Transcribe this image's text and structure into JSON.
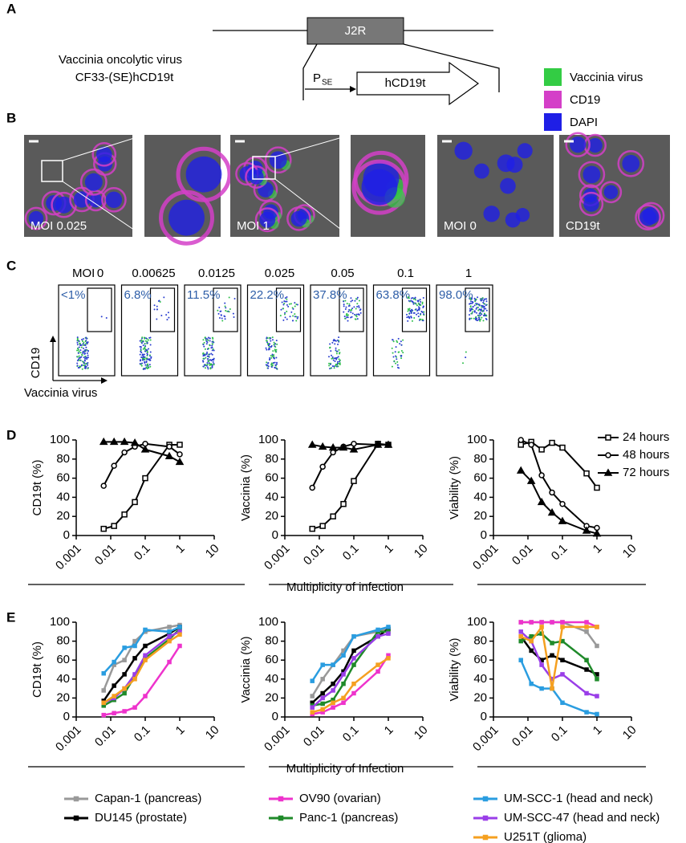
{
  "panel_a": {
    "label": "A",
    "virus_line1": "Vaccinia oncolytic virus",
    "virus_line2": "CF33-(SE)hCD19t",
    "gene_box": "J2R",
    "promoter": "P",
    "promoter_sub": "SE",
    "insert": "hCD19t"
  },
  "panel_b": {
    "label": "B",
    "legend": [
      {
        "name": "Vaccinia virus",
        "color": "#33cc44"
      },
      {
        "name": "CD19",
        "color": "#d43fc8"
      },
      {
        "name": "DAPI",
        "color": "#1f1fe6"
      }
    ],
    "image_labels": [
      "MOI 0.025",
      "MOI 1",
      "MOI 0",
      "CD19t"
    ]
  },
  "panel_c": {
    "label": "C",
    "moi_label": "MOI",
    "moi": [
      "0",
      "0.00625",
      "0.0125",
      "0.025",
      "0.05",
      "0.1",
      "1"
    ],
    "gate_percent": [
      "<1%",
      "6.8%",
      "11.5%",
      "22.2%",
      "37.8%",
      "63.8%",
      "98.0%"
    ],
    "y_axis": "CD19",
    "x_axis": "Vaccinia virus"
  },
  "panel_d": {
    "label": "D",
    "xlabel": "Multiplicity of infection"
  },
  "panel_e": {
    "label": "E",
    "xlabel": "Multiplicity of Infection"
  },
  "chart_data": [
    {
      "type": "line",
      "ylabel": "CD19t (%)",
      "x": [
        0.00625,
        0.0125,
        0.025,
        0.05,
        0.1,
        0.5,
        1
      ],
      "xscale": "log",
      "xlim": [
        0.001,
        10
      ],
      "xticks": [
        0.001,
        0.01,
        0.1,
        1,
        10
      ],
      "ylim": [
        0,
        100
      ],
      "yticks": [
        0,
        20,
        40,
        60,
        80,
        100
      ],
      "series": [
        {
          "color": "#000000",
          "marker": "square",
          "filled": false,
          "values": [
            7,
            10,
            22,
            35,
            60,
            95,
            95
          ]
        },
        {
          "color": "#000000",
          "marker": "circle",
          "filled": false,
          "values": [
            52,
            73,
            87,
            93,
            96,
            93,
            85
          ]
        },
        {
          "color": "#000000",
          "marker": "triangle",
          "filled": true,
          "values": [
            98,
            98,
            98,
            97,
            90,
            83,
            77
          ]
        }
      ]
    },
    {
      "type": "line",
      "ylabel": "Vaccinia (%)",
      "x": [
        0.00625,
        0.0125,
        0.025,
        0.05,
        0.1,
        0.5,
        1
      ],
      "xscale": "log",
      "xlim": [
        0.001,
        10
      ],
      "xticks": [
        0.001,
        0.01,
        0.1,
        1,
        10
      ],
      "ylim": [
        0,
        100
      ],
      "yticks": [
        0,
        20,
        40,
        60,
        80,
        100
      ],
      "series": [
        {
          "color": "#000000",
          "marker": "square",
          "filled": false,
          "values": [
            7,
            10,
            20,
            33,
            57,
            96,
            95
          ]
        },
        {
          "color": "#000000",
          "marker": "circle",
          "filled": false,
          "values": [
            50,
            72,
            87,
            93,
            96,
            95,
            95
          ]
        },
        {
          "color": "#000000",
          "marker": "triangle",
          "filled": true,
          "values": [
            95,
            93,
            92,
            92,
            90,
            95,
            95
          ]
        }
      ]
    },
    {
      "type": "line",
      "ylabel": "Viability (%)",
      "x": [
        0.00625,
        0.0125,
        0.025,
        0.05,
        0.1,
        0.5,
        1
      ],
      "xscale": "log",
      "xlim": [
        0.001,
        10
      ],
      "xticks": [
        0.001,
        0.01,
        0.1,
        1,
        10
      ],
      "ylim": [
        0,
        100
      ],
      "yticks": [
        0,
        20,
        40,
        60,
        80,
        100
      ],
      "legend": "top-right",
      "series": [
        {
          "name": "24 hours",
          "color": "#000000",
          "marker": "square",
          "filled": false,
          "values": [
            95,
            98,
            90,
            97,
            92,
            65,
            50
          ]
        },
        {
          "name": "48 hours",
          "color": "#000000",
          "marker": "circle",
          "filled": false,
          "values": [
            100,
            95,
            63,
            45,
            33,
            10,
            8
          ]
        },
        {
          "name": "72 hours",
          "color": "#000000",
          "marker": "triangle",
          "filled": true,
          "values": [
            68,
            57,
            35,
            24,
            15,
            5,
            2
          ]
        }
      ]
    },
    {
      "type": "line",
      "ylabel": "CD19t (%)",
      "x": [
        0.00625,
        0.0125,
        0.025,
        0.05,
        0.1,
        0.5,
        1
      ],
      "xscale": "log",
      "xlim": [
        0.001,
        10
      ],
      "xticks": [
        0.001,
        0.01,
        0.1,
        1,
        10
      ],
      "ylim": [
        0,
        100
      ],
      "yticks": [
        0,
        20,
        40,
        60,
        80,
        100
      ],
      "series": [
        {
          "color": "#999999",
          "marker": "square",
          "filled": true,
          "values": [
            28,
            55,
            60,
            80,
            90,
            95,
            97
          ]
        },
        {
          "color": "#000000",
          "marker": "square",
          "filled": true,
          "values": [
            17,
            33,
            45,
            62,
            75,
            88,
            95
          ]
        },
        {
          "color": "#ee33cc",
          "marker": "square",
          "filled": true,
          "values": [
            2,
            4,
            6,
            10,
            22,
            58,
            75
          ]
        },
        {
          "color": "#1f8a2a",
          "marker": "square",
          "filled": true,
          "values": [
            12,
            18,
            25,
            43,
            62,
            82,
            93
          ]
        },
        {
          "color": "#2a9de0",
          "marker": "square",
          "filled": true,
          "values": [
            46,
            58,
            73,
            75,
            92,
            90,
            95
          ]
        },
        {
          "color": "#9a3ee8",
          "marker": "square",
          "filled": true,
          "values": [
            15,
            20,
            30,
            45,
            65,
            85,
            90
          ]
        },
        {
          "color": "#f5a020",
          "marker": "square",
          "filled": true,
          "values": [
            15,
            22,
            30,
            40,
            60,
            80,
            87
          ]
        }
      ]
    },
    {
      "type": "line",
      "ylabel": "Vaccinia (%)",
      "x": [
        0.00625,
        0.0125,
        0.025,
        0.05,
        0.1,
        0.5,
        1
      ],
      "xscale": "log",
      "xlim": [
        0.001,
        10
      ],
      "xticks": [
        0.001,
        0.01,
        0.1,
        1,
        10
      ],
      "ylim": [
        0,
        100
      ],
      "yticks": [
        0,
        20,
        40,
        60,
        80,
        100
      ],
      "series": [
        {
          "color": "#999999",
          "marker": "square",
          "filled": true,
          "values": [
            22,
            40,
            55,
            70,
            85,
            90,
            93
          ]
        },
        {
          "color": "#000000",
          "marker": "square",
          "filled": true,
          "values": [
            15,
            25,
            35,
            48,
            70,
            85,
            93
          ]
        },
        {
          "color": "#ee33cc",
          "marker": "square",
          "filled": true,
          "values": [
            3,
            5,
            10,
            15,
            25,
            48,
            65
          ]
        },
        {
          "color": "#1f8a2a",
          "marker": "square",
          "filled": true,
          "values": [
            12,
            14,
            18,
            35,
            55,
            90,
            90
          ]
        },
        {
          "color": "#2a9de0",
          "marker": "square",
          "filled": true,
          "values": [
            38,
            55,
            55,
            65,
            85,
            92,
            95
          ]
        },
        {
          "color": "#9a3ee8",
          "marker": "square",
          "filled": true,
          "values": [
            10,
            20,
            28,
            45,
            62,
            85,
            88
          ]
        },
        {
          "color": "#f5a020",
          "marker": "square",
          "filled": true,
          "values": [
            5,
            8,
            15,
            20,
            35,
            55,
            62
          ]
        }
      ]
    },
    {
      "type": "line",
      "ylabel": "Viability (%)",
      "x": [
        0.00625,
        0.0125,
        0.025,
        0.05,
        0.1,
        0.5,
        1
      ],
      "xscale": "log",
      "xlim": [
        0.001,
        10
      ],
      "xticks": [
        0.001,
        0.01,
        0.1,
        1,
        10
      ],
      "ylim": [
        0,
        100
      ],
      "yticks": [
        0,
        20,
        40,
        60,
        80,
        100
      ],
      "legend": "bottom",
      "series": [
        {
          "name": "Capan-1 (pancreas)",
          "color": "#999999",
          "marker": "square",
          "filled": true,
          "values": [
            100,
            100,
            100,
            100,
            100,
            90,
            75
          ]
        },
        {
          "name": "DU145 (prostate)",
          "color": "#000000",
          "marker": "square",
          "filled": true,
          "values": [
            85,
            70,
            60,
            65,
            60,
            50,
            45
          ]
        },
        {
          "name": "OV90 (ovarian)",
          "color": "#ee33cc",
          "marker": "square",
          "filled": true,
          "values": [
            100,
            100,
            100,
            100,
            100,
            100,
            95
          ]
        },
        {
          "name": "Panc-1 (pancreas)",
          "color": "#1f8a2a",
          "marker": "square",
          "filled": true,
          "values": [
            80,
            85,
            88,
            78,
            80,
            60,
            40
          ]
        },
        {
          "name": "UM-SCC-1 (head and neck)",
          "color": "#2a9de0",
          "marker": "square",
          "filled": true,
          "values": [
            60,
            35,
            30,
            30,
            15,
            5,
            3
          ]
        },
        {
          "name": "UM-SCC-47 (head and neck)",
          "color": "#9a3ee8",
          "marker": "square",
          "filled": true,
          "values": [
            90,
            80,
            55,
            40,
            45,
            25,
            22
          ]
        },
        {
          "name": "U251T (glioma)",
          "color": "#f5a020",
          "marker": "square",
          "filled": true,
          "values": [
            85,
            80,
            95,
            30,
            95,
            95,
            95
          ]
        }
      ]
    }
  ]
}
